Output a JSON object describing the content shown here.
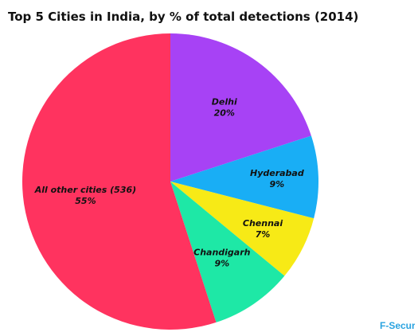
{
  "chart_data": {
    "type": "pie",
    "title": "Top 5 Cities in India, by % of total detections (2014)",
    "slices": [
      {
        "label": "Delhi",
        "value": 20,
        "value_label": "20%",
        "color": "#a742f5"
      },
      {
        "label": "Hyderabad",
        "value": 9,
        "value_label": "9%",
        "color": "#19aef5"
      },
      {
        "label": "Chennai",
        "value": 7,
        "value_label": "7%",
        "color": "#f7ea16"
      },
      {
        "label": "Chandigarh",
        "value": 9,
        "value_label": "9%",
        "color": "#1ee8a6"
      },
      {
        "label": "All other cities (536)",
        "value": 55,
        "value_label": "55%",
        "color": "#ff335f"
      }
    ],
    "start": "top",
    "direction": "clockwise"
  },
  "brand": "F-Secure"
}
